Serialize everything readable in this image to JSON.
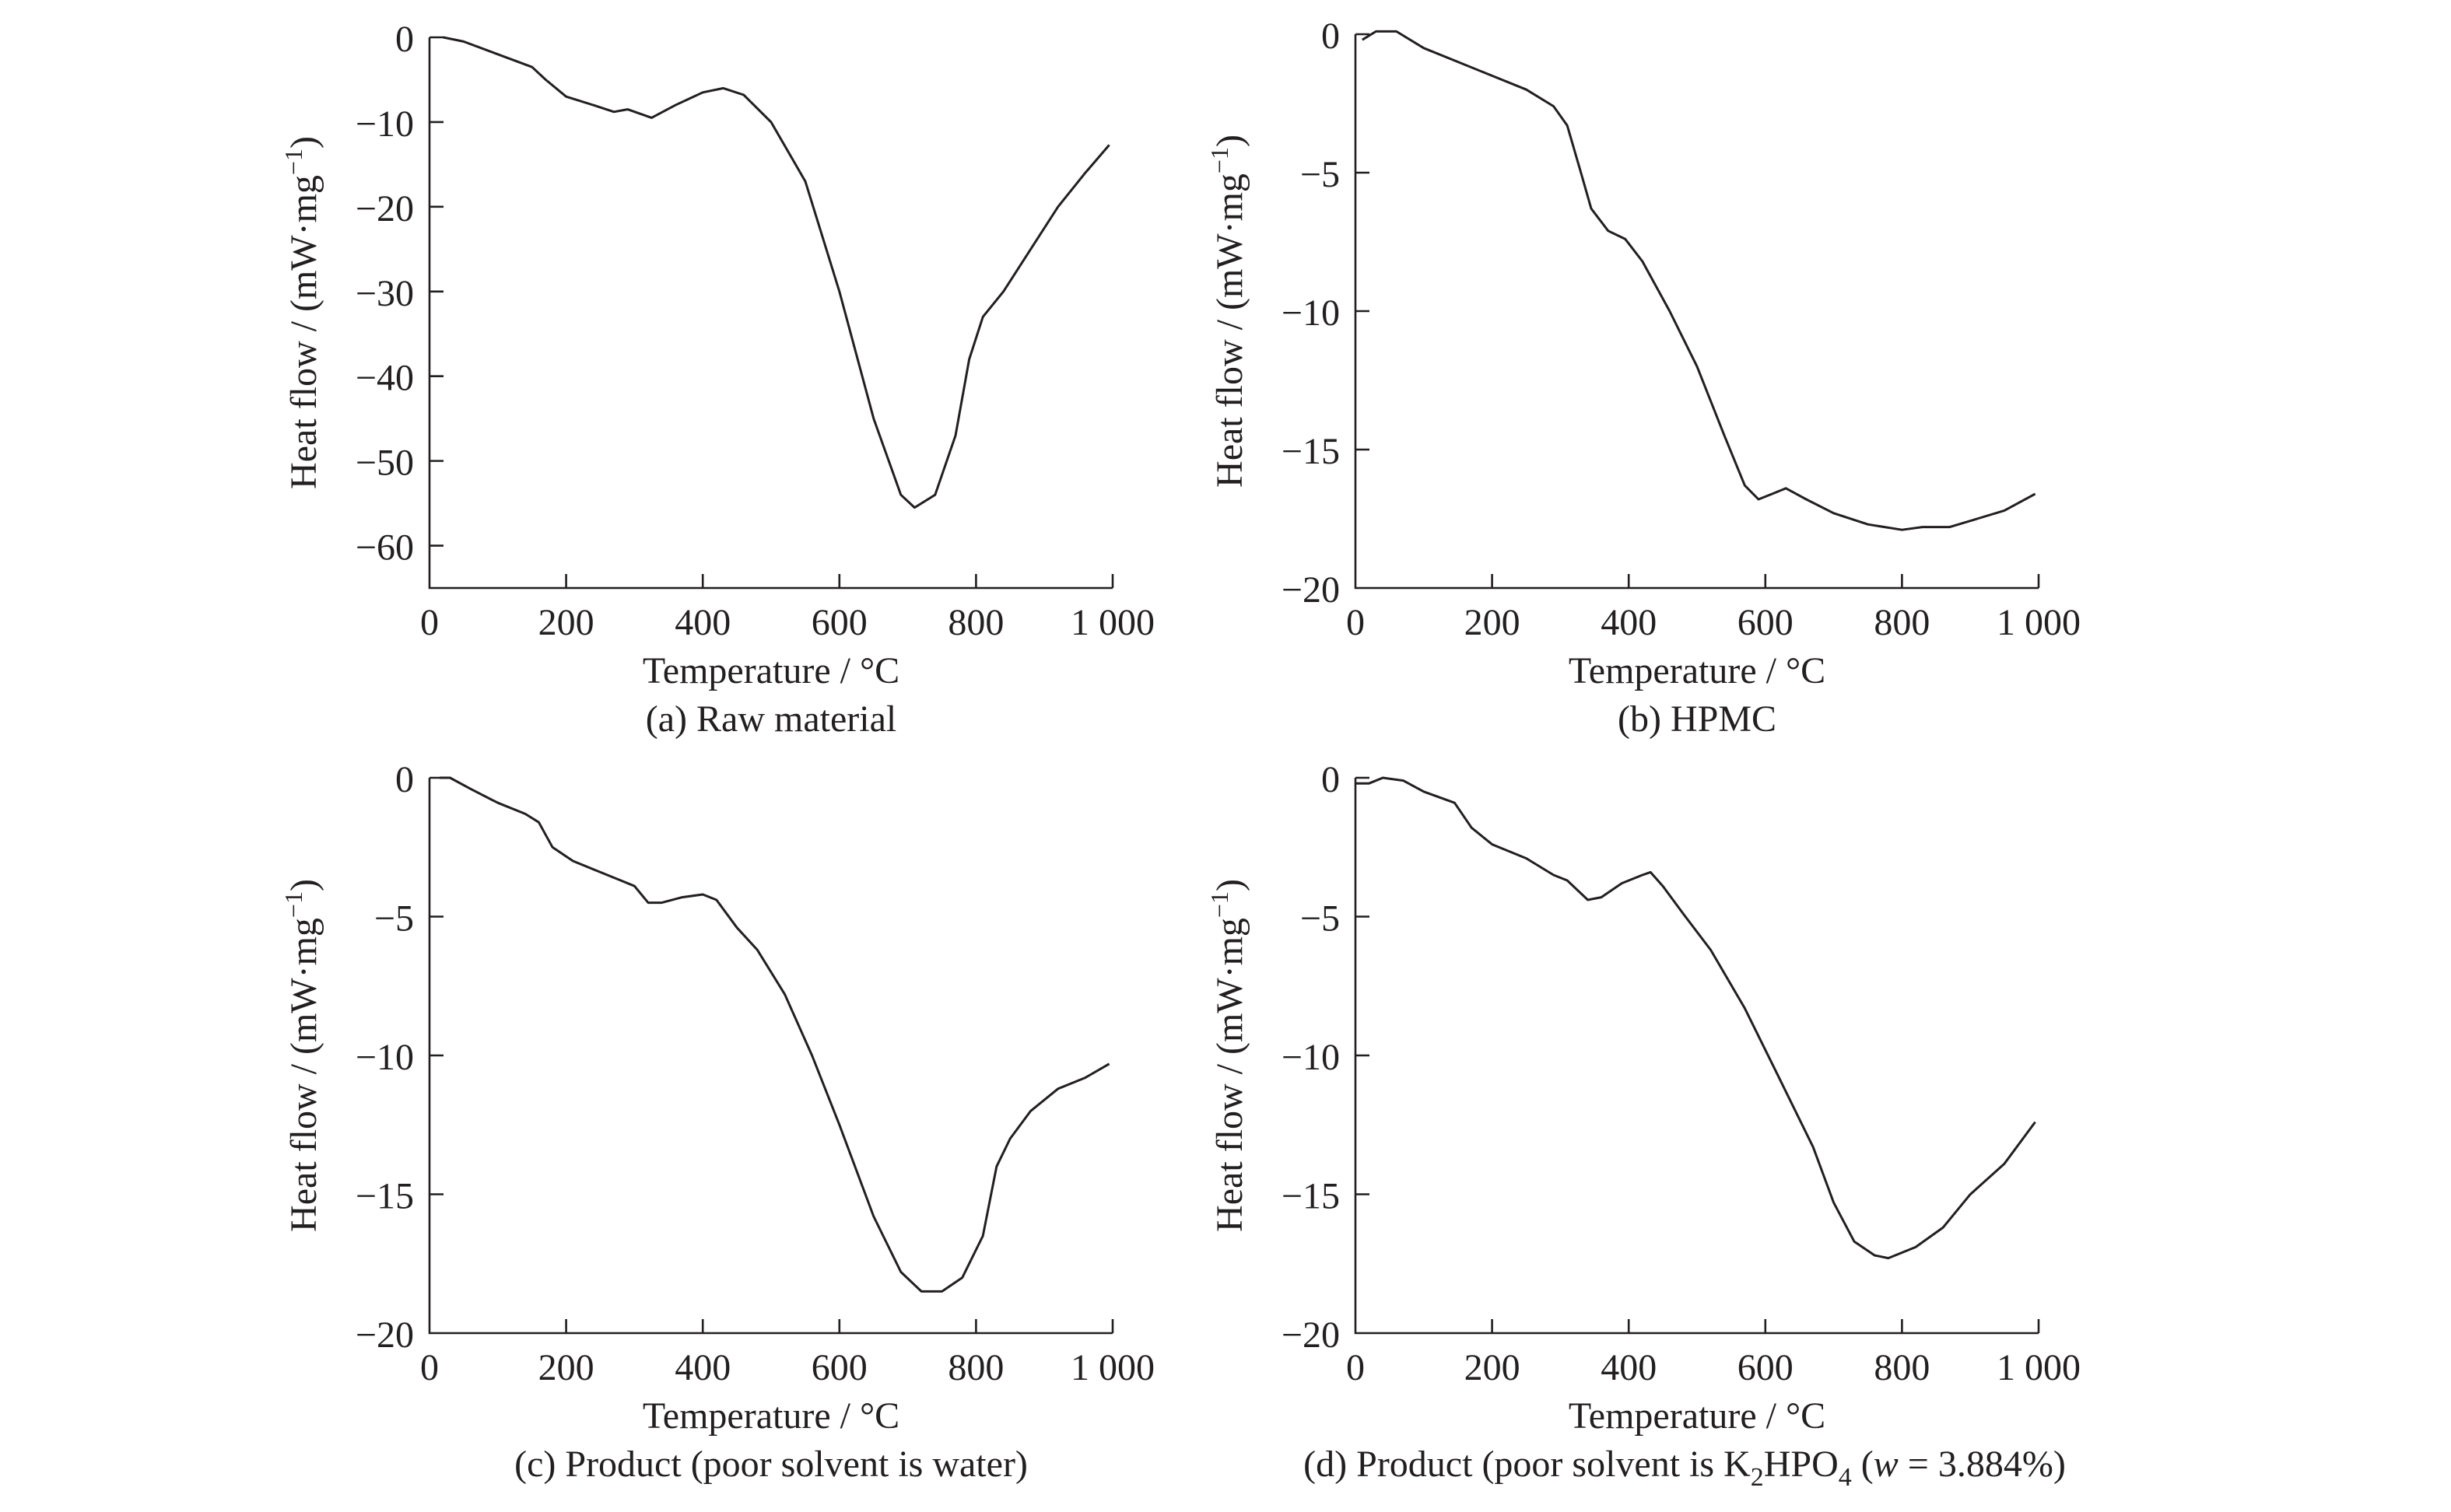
{
  "chart_data": [
    {
      "type": "line",
      "caption": "(a) Raw material",
      "xlabel": "Temperature / °C",
      "ylabel": {
        "main": "Heat flow / (mW·mg",
        "sup": "−1",
        "close": ")"
      },
      "xlim": [
        0,
        1000
      ],
      "ylim": [
        -65,
        0
      ],
      "xticks": [
        0,
        200,
        400,
        600,
        800,
        1000
      ],
      "xtick_labels": [
        "0",
        "200",
        "400",
        "600",
        "800",
        "1 000"
      ],
      "yticks": [
        0,
        -10,
        -20,
        -30,
        -40,
        -50,
        -60
      ],
      "ytick_labels": [
        "0",
        "−10",
        "−20",
        "−30",
        "−40",
        "−50",
        "−60"
      ],
      "grid": false,
      "x": [
        20,
        50,
        100,
        150,
        170,
        200,
        240,
        270,
        290,
        325,
        360,
        400,
        430,
        460,
        500,
        550,
        600,
        650,
        690,
        710,
        740,
        770,
        790,
        810,
        840,
        880,
        920,
        960,
        995
      ],
      "y": [
        0,
        -0.5,
        -2,
        -3.5,
        -5,
        -7,
        -8,
        -8.8,
        -8.5,
        -9.5,
        -8,
        -6.5,
        -6,
        -6.8,
        -10,
        -17,
        -30,
        -45,
        -54,
        -55.5,
        -54,
        -47,
        -38,
        -33,
        -30,
        -25,
        -20,
        -16,
        -12.7
      ]
    },
    {
      "type": "line",
      "caption": "(b) HPMC",
      "xlabel": "Temperature / °C",
      "ylabel": {
        "main": "Heat flow / (mW·mg",
        "sup": "−1",
        "close": ")"
      },
      "xlim": [
        0,
        1000
      ],
      "ylim": [
        -20,
        0
      ],
      "xticks": [
        0,
        200,
        400,
        600,
        800,
        1000
      ],
      "xtick_labels": [
        "0",
        "200",
        "400",
        "600",
        "800",
        "1 000"
      ],
      "yticks": [
        0,
        -5,
        -10,
        -15,
        -20
      ],
      "ytick_labels": [
        "0",
        "−5",
        "−10",
        "−15",
        "−20"
      ],
      "grid": false,
      "x": [
        10,
        30,
        60,
        100,
        150,
        200,
        250,
        290,
        310,
        330,
        345,
        370,
        395,
        420,
        460,
        500,
        540,
        570,
        590,
        610,
        630,
        660,
        700,
        750,
        800,
        830,
        870,
        910,
        950,
        995
      ],
      "y": [
        -0.2,
        0.1,
        0.1,
        -0.5,
        -1,
        -1.5,
        -2,
        -2.6,
        -3.3,
        -5,
        -6.3,
        -7.1,
        -7.4,
        -8.2,
        -10,
        -12,
        -14.5,
        -16.3,
        -16.8,
        -16.6,
        -16.4,
        -16.8,
        -17.3,
        -17.7,
        -17.9,
        -17.8,
        -17.8,
        -17.5,
        -17.2,
        -16.6
      ]
    },
    {
      "type": "line",
      "caption": "(c) Product (poor solvent is water)",
      "xlabel": "Temperature / °C",
      "ylabel": {
        "main": "Heat flow / (mW·mg",
        "sup": "−1",
        "close": ")"
      },
      "xlim": [
        0,
        1000
      ],
      "ylim": [
        -20,
        0
      ],
      "xticks": [
        0,
        200,
        400,
        600,
        800,
        1000
      ],
      "xtick_labels": [
        "0",
        "200",
        "400",
        "600",
        "800",
        "1 000"
      ],
      "yticks": [
        0,
        -5,
        -10,
        -15,
        -20
      ],
      "ytick_labels": [
        "0",
        "−5",
        "−10",
        "−15",
        "−20"
      ],
      "grid": false,
      "x": [
        15,
        30,
        60,
        100,
        140,
        160,
        180,
        210,
        250,
        280,
        300,
        320,
        340,
        370,
        400,
        420,
        450,
        480,
        520,
        560,
        600,
        650,
        690,
        720,
        750,
        780,
        810,
        830,
        850,
        880,
        920,
        960,
        995
      ],
      "y": [
        0,
        0,
        -0.4,
        -0.9,
        -1.3,
        -1.6,
        -2.5,
        -3,
        -3.4,
        -3.7,
        -3.9,
        -4.5,
        -4.5,
        -4.3,
        -4.2,
        -4.4,
        -5.4,
        -6.2,
        -7.8,
        -10,
        -12.5,
        -15.8,
        -17.8,
        -18.5,
        -18.5,
        -18,
        -16.5,
        -14,
        -13,
        -12,
        -11.2,
        -10.8,
        -10.3
      ]
    },
    {
      "type": "line",
      "caption_parts": [
        "(d) Product (poor solvent is K",
        "2",
        "HPO",
        "4",
        " (",
        "w",
        " = 3.884%)"
      ],
      "xlabel": "Temperature / °C",
      "ylabel": {
        "main": "Heat flow / (mW·mg",
        "sup": "−1",
        "close": ")"
      },
      "xlim": [
        0,
        1000
      ],
      "ylim": [
        -20,
        0
      ],
      "xticks": [
        0,
        200,
        400,
        600,
        800,
        1000
      ],
      "xtick_labels": [
        "0",
        "200",
        "400",
        "600",
        "800",
        "1 000"
      ],
      "yticks": [
        0,
        -5,
        -10,
        -15,
        -20
      ],
      "ytick_labels": [
        "0",
        "−5",
        "−10",
        "−15",
        "−20"
      ],
      "grid": false,
      "x": [
        0,
        20,
        40,
        70,
        100,
        145,
        170,
        200,
        250,
        290,
        310,
        340,
        360,
        390,
        420,
        432,
        450,
        480,
        520,
        570,
        620,
        670,
        700,
        730,
        760,
        780,
        820,
        860,
        900,
        950,
        995
      ],
      "y": [
        -0.2,
        -0.2,
        0,
        -0.1,
        -0.5,
        -0.9,
        -1.8,
        -2.4,
        -2.9,
        -3.5,
        -3.7,
        -4.4,
        -4.3,
        -3.8,
        -3.5,
        -3.4,
        -3.9,
        -4.9,
        -6.2,
        -8.3,
        -10.8,
        -13.3,
        -15.3,
        -16.7,
        -17.2,
        -17.3,
        -16.9,
        -16.2,
        -15,
        -13.9,
        -12.4
      ]
    }
  ]
}
